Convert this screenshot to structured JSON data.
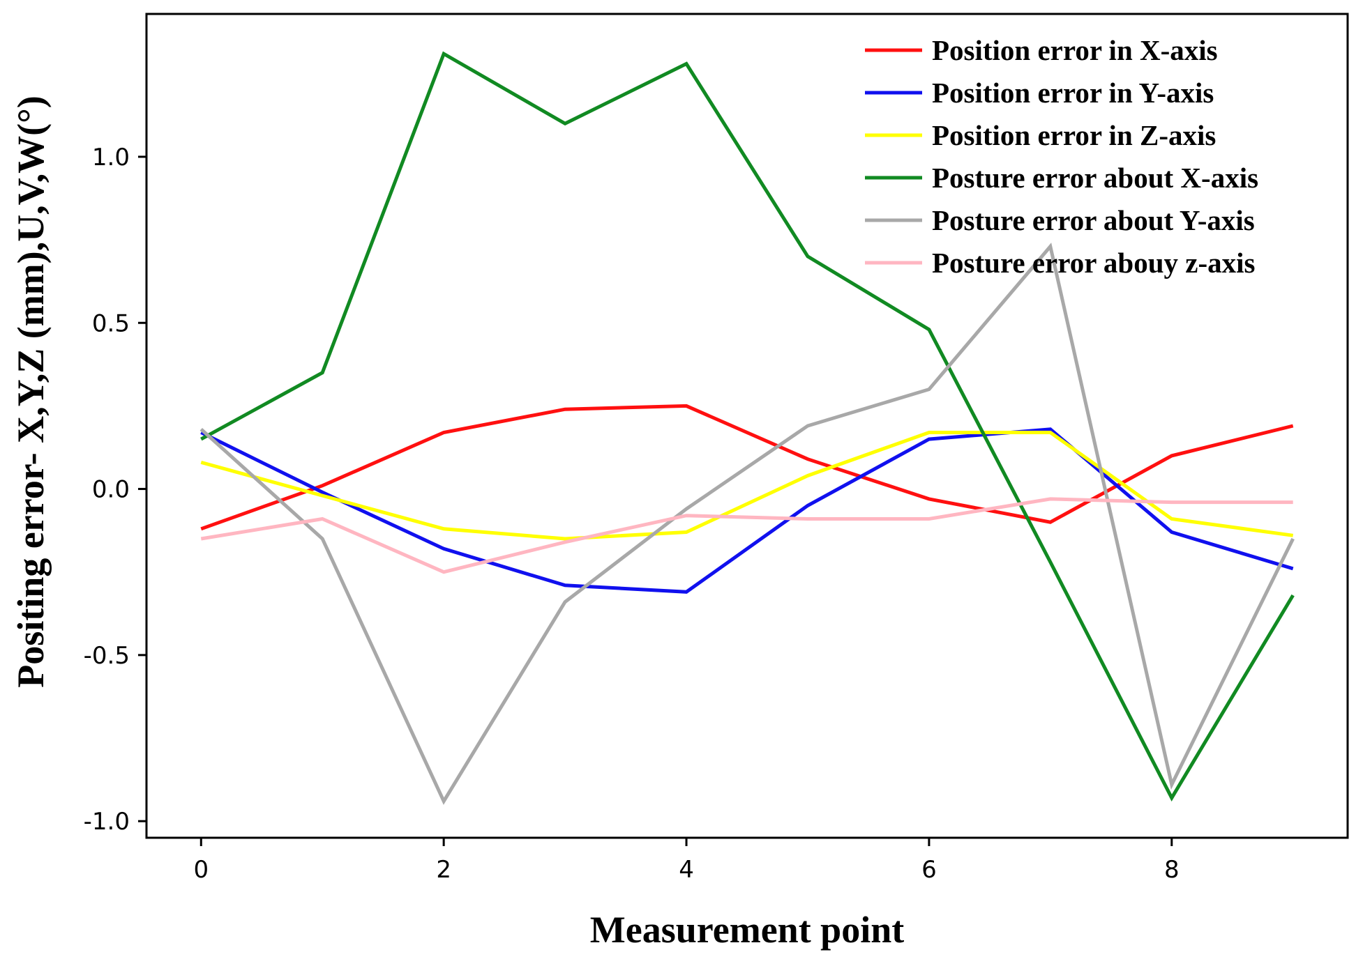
{
  "chart_data": {
    "type": "line",
    "title": "",
    "xlabel": "Measurement point",
    "ylabel": "Positing error- X,Y,Z (mm),U,V,W(°)",
    "x": [
      0,
      1,
      2,
      3,
      4,
      5,
      6,
      7,
      8,
      9
    ],
    "xlim": [
      -0.45,
      9.45
    ],
    "ylim": [
      -1.05,
      1.43
    ],
    "xticks": [
      0,
      2,
      4,
      6,
      8
    ],
    "xtick_labels": [
      "0",
      "2",
      "4",
      "6",
      "8"
    ],
    "yticks": [
      -1.0,
      -0.5,
      0.0,
      0.5,
      1.0
    ],
    "ytick_labels": [
      "-1.0",
      "-0.5",
      "0.0",
      "0.5",
      "1.0"
    ],
    "grid": false,
    "legend_position": "top-right",
    "series": [
      {
        "name": "Position error in X-axis",
        "color": "#ff1010",
        "values": [
          -0.12,
          0.01,
          0.17,
          0.24,
          0.25,
          0.09,
          -0.03,
          -0.1,
          0.1,
          0.19
        ]
      },
      {
        "name": "Position error in Y-axis",
        "color": "#1010ee",
        "values": [
          0.17,
          -0.01,
          -0.18,
          -0.29,
          -0.31,
          -0.05,
          0.15,
          0.18,
          -0.13,
          -0.24
        ]
      },
      {
        "name": "Position error in Z-axis",
        "color": "#ffff00",
        "values": [
          0.08,
          -0.02,
          -0.12,
          -0.15,
          -0.13,
          0.04,
          0.17,
          0.17,
          -0.09,
          -0.14
        ]
      },
      {
        "name": "Posture error about X-axis",
        "color": "#118a22",
        "values": [
          0.15,
          0.35,
          1.31,
          1.1,
          1.28,
          0.7,
          0.48,
          -0.22,
          -0.93,
          -0.32
        ]
      },
      {
        "name": "Posture error about Y-axis",
        "color": "#a8a8a8",
        "values": [
          0.18,
          -0.15,
          -0.94,
          -0.34,
          -0.06,
          0.19,
          0.3,
          0.73,
          -0.89,
          -0.15
        ]
      },
      {
        "name": "Posture error abouy z-axis",
        "color": "#ffb6c1",
        "values": [
          -0.15,
          -0.09,
          -0.25,
          -0.16,
          -0.08,
          -0.09,
          -0.09,
          -0.03,
          -0.04,
          -0.04
        ]
      }
    ]
  }
}
